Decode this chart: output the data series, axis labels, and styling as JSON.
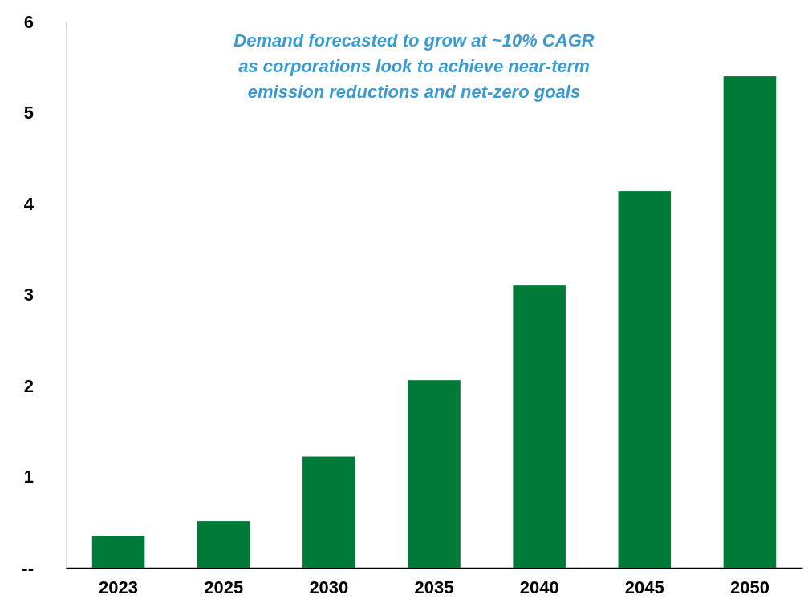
{
  "chart_data": {
    "type": "bar",
    "categories": [
      "2023",
      "2025",
      "2030",
      "2035",
      "2040",
      "2045",
      "2050"
    ],
    "values": [
      0.35,
      0.51,
      1.22,
      2.06,
      3.1,
      4.14,
      5.4
    ],
    "color": "#007a37",
    "ylim": [
      0,
      6
    ],
    "yticks": [
      {
        "value": 0,
        "label": "--"
      },
      1,
      2,
      3,
      4,
      5,
      6
    ],
    "grid": false,
    "annotations": [
      "Demand forecasted to grow at ~10% CAGR\nas corporations look to achieve near-term\nemission reductions and net-zero goals"
    ]
  }
}
